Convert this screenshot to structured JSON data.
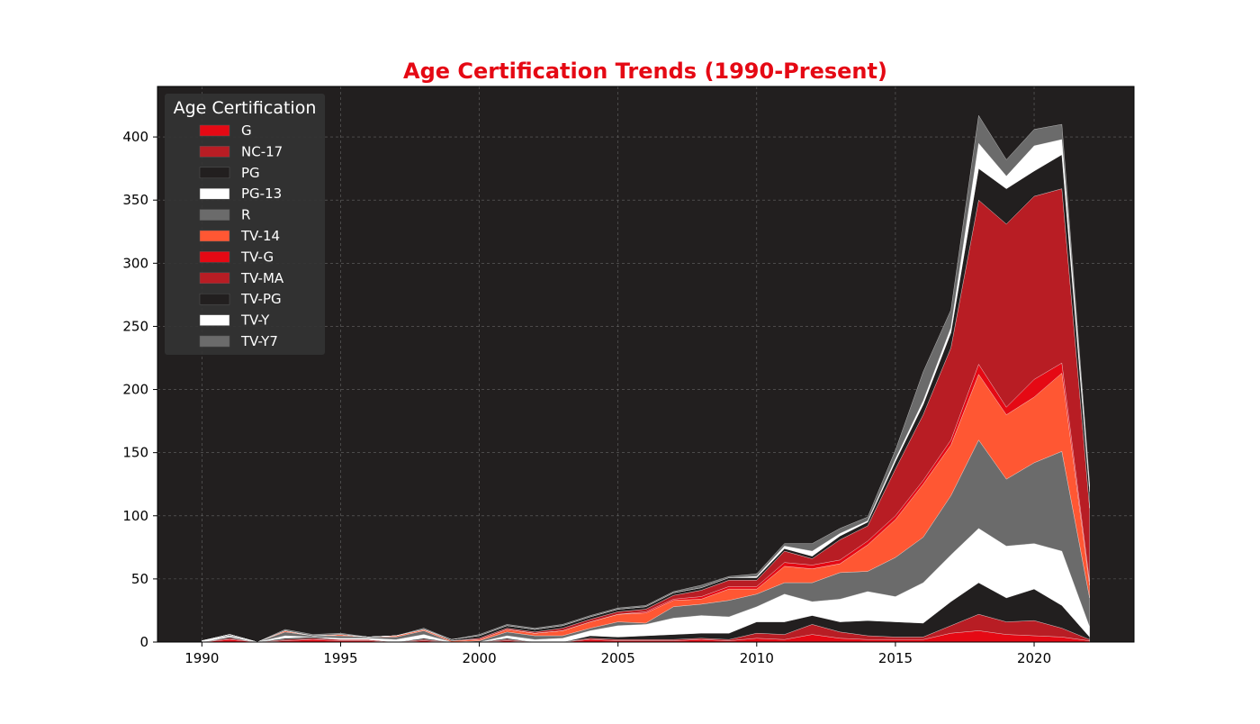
{
  "chart_data": {
    "type": "area",
    "stacked": true,
    "title": "Age Certification Trends (1990-Present)",
    "xlabel": "",
    "ylabel": "",
    "xlim": [
      1988.4,
      2023.6
    ],
    "ylim": [
      0,
      440
    ],
    "x_ticks": [
      1990,
      1995,
      2000,
      2005,
      2010,
      2015,
      2020
    ],
    "y_ticks": [
      0,
      50,
      100,
      150,
      200,
      250,
      300,
      350,
      400
    ],
    "grid": true,
    "legend": {
      "title": "Age Certification",
      "placement": "top-left"
    },
    "x": [
      1990,
      1991,
      1992,
      1993,
      1994,
      1995,
      1996,
      1997,
      1998,
      1999,
      2000,
      2001,
      2002,
      2003,
      2004,
      2005,
      2006,
      2007,
      2008,
      2009,
      2010,
      2011,
      2012,
      2013,
      2014,
      2015,
      2016,
      2017,
      2018,
      2019,
      2020,
      2021,
      2022
    ],
    "series": [
      {
        "name": "G",
        "color": "#e50914",
        "values": [
          0,
          2,
          0,
          1,
          2,
          1,
          1,
          0,
          1,
          0,
          0,
          1,
          0,
          0,
          2,
          1,
          1,
          1,
          2,
          1,
          3,
          2,
          6,
          3,
          2,
          2,
          2,
          7,
          9,
          6,
          5,
          4,
          1
        ]
      },
      {
        "name": "NC-17",
        "color": "#b81d24",
        "values": [
          0,
          1,
          0,
          1,
          1,
          1,
          1,
          0,
          1,
          0,
          0,
          1,
          0,
          0,
          1,
          1,
          1,
          1,
          1,
          1,
          4,
          4,
          8,
          5,
          3,
          2,
          2,
          6,
          13,
          10,
          12,
          7,
          1
        ]
      },
      {
        "name": "PG",
        "color": "#221f1f",
        "values": [
          0,
          1,
          0,
          1,
          1,
          0,
          0,
          0,
          1,
          0,
          0,
          1,
          0,
          0,
          2,
          2,
          3,
          4,
          4,
          5,
          9,
          10,
          7,
          8,
          12,
          12,
          11,
          19,
          25,
          19,
          25,
          18,
          2
        ]
      },
      {
        "name": "PG-13",
        "color": "#ffffff",
        "values": [
          1,
          1,
          0,
          2,
          0,
          1,
          1,
          2,
          3,
          0,
          0,
          2,
          2,
          3,
          4,
          9,
          9,
          13,
          14,
          13,
          12,
          22,
          11,
          18,
          23,
          20,
          32,
          37,
          43,
          41,
          36,
          43,
          8
        ]
      },
      {
        "name": "R",
        "color": "#6b6b6b",
        "values": [
          0,
          1,
          0,
          3,
          1,
          2,
          1,
          2,
          3,
          0,
          1,
          3,
          3,
          2,
          2,
          3,
          1,
          9,
          9,
          13,
          10,
          9,
          15,
          21,
          16,
          31,
          36,
          47,
          70,
          53,
          64,
          79,
          23
        ]
      },
      {
        "name": "TV-14",
        "color": "#ff5733",
        "values": [
          0,
          0,
          0,
          1,
          0,
          1,
          0,
          1,
          1,
          1,
          1,
          2,
          2,
          4,
          5,
          6,
          8,
          5,
          4,
          9,
          4,
          13,
          11,
          7,
          21,
          30,
          42,
          40,
          52,
          51,
          52,
          62,
          10
        ]
      },
      {
        "name": "TV-G",
        "color": "#e50914",
        "values": [
          0,
          0,
          0,
          0,
          0,
          0,
          0,
          0,
          0,
          0,
          0,
          0,
          0,
          0,
          0,
          0,
          1,
          1,
          2,
          2,
          2,
          3,
          3,
          3,
          3,
          3,
          3,
          4,
          8,
          6,
          14,
          8,
          3
        ]
      },
      {
        "name": "TV-MA",
        "color": "#b81d24",
        "values": [
          0,
          0,
          0,
          0,
          0,
          0,
          0,
          0,
          0,
          0,
          1,
          1,
          1,
          2,
          2,
          2,
          2,
          3,
          5,
          5,
          5,
          9,
          5,
          16,
          12,
          37,
          52,
          73,
          130,
          145,
          145,
          138,
          58
        ]
      },
      {
        "name": "TV-PG",
        "color": "#221f1f",
        "values": [
          0,
          0,
          0,
          0,
          0,
          0,
          0,
          0,
          0,
          1,
          2,
          2,
          2,
          2,
          2,
          2,
          2,
          2,
          2,
          2,
          2,
          2,
          2,
          3,
          3,
          6,
          8,
          12,
          25,
          28,
          20,
          27,
          13
        ]
      },
      {
        "name": "TV-Y",
        "color": "#ffffff",
        "values": [
          0,
          0,
          0,
          0,
          0,
          0,
          0,
          0,
          0,
          0,
          0,
          0,
          0,
          0,
          0,
          0,
          0,
          0,
          0,
          0,
          1,
          2,
          4,
          2,
          1,
          2,
          3,
          4,
          20,
          10,
          20,
          12,
          4
        ]
      },
      {
        "name": "TV-Y7",
        "color": "#6b6b6b",
        "values": [
          0,
          0,
          0,
          1,
          1,
          1,
          0,
          0,
          1,
          0,
          1,
          1,
          1,
          1,
          1,
          1,
          1,
          1,
          2,
          1,
          2,
          2,
          6,
          4,
          3,
          7,
          23,
          14,
          22,
          13,
          13,
          12,
          3
        ]
      }
    ]
  }
}
